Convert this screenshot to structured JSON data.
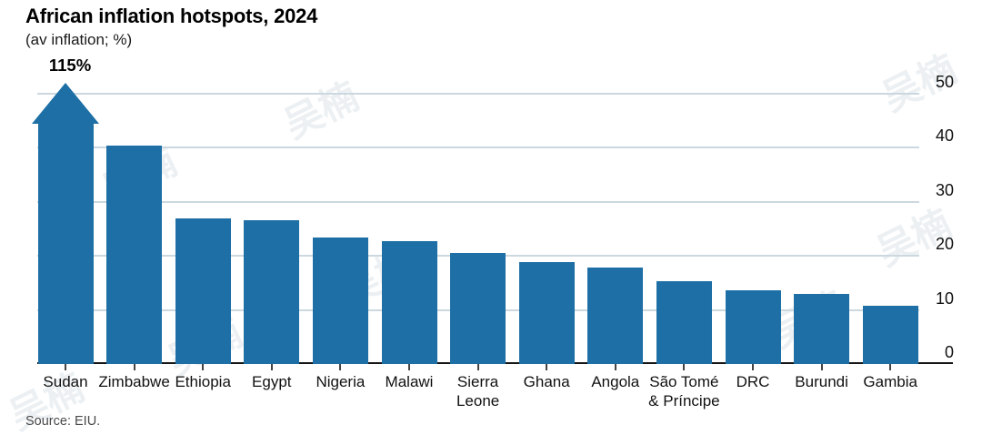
{
  "header": {
    "title": "African inflation hotspots, 2024",
    "subtitle": "(av inflation; %)"
  },
  "footer": {
    "source": "Source: EIU."
  },
  "watermark": {
    "text": "吴楠"
  },
  "chart_data": {
    "type": "bar",
    "title": "African inflation hotspots, 2024",
    "subtitle": "(av inflation; %)",
    "categories": [
      "Sudan",
      "Zimbabwe",
      "Ethiopia",
      "Egypt",
      "Nigeria",
      "Malawi",
      "Sierra\nLeone",
      "Ghana",
      "Angola",
      "São Tomé\n& Príncipe",
      "DRC",
      "Burundi",
      "Gambia"
    ],
    "values": [
      115,
      40.4,
      27,
      26.6,
      23.4,
      22.7,
      20.5,
      18.8,
      17.8,
      15.3,
      13.6,
      12.9,
      10.8
    ],
    "annotation": {
      "text": "115%",
      "category": "Sudan",
      "note": "bar exceeds axis, drawn capped with upward arrow"
    },
    "y_axis": {
      "ticks": [
        0,
        10,
        20,
        30,
        40,
        50
      ],
      "side": "right",
      "ylim": [
        0,
        51.3
      ]
    },
    "grid": true,
    "legend": "none",
    "xlabel": "",
    "ylabel": "",
    "colors": {
      "bar": "#1d6fa5",
      "gridline": "#ccd8df",
      "baseline": "#161616",
      "tick": "#444444"
    },
    "source": "Source: EIU."
  }
}
